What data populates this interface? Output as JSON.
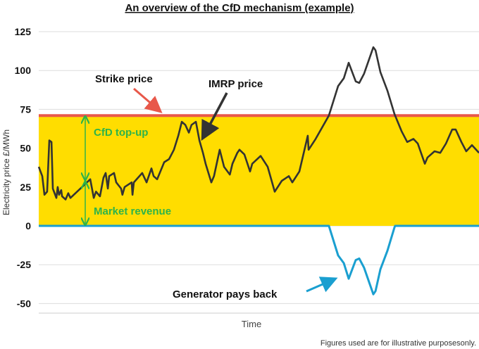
{
  "chart_data": {
    "type": "line",
    "title": "An overview of the CfD mechanism (example)",
    "xlabel": "Time",
    "ylabel": "Electricity price £/MWh",
    "ylim": [
      -50,
      125
    ],
    "yticks": [
      -50,
      -25,
      0,
      25,
      50,
      75,
      100,
      125
    ],
    "xlim": [
      0,
      100
    ],
    "grid": true,
    "strike_price": 71,
    "series": [
      {
        "name": "IMRP price",
        "color": "#333333",
        "x": [
          0,
          0.8,
          1.3,
          1.9,
          2.4,
          2.9,
          3.2,
          4,
          4.3,
          4.6,
          5.1,
          5.3,
          6.1,
          6.7,
          7.2,
          11.7,
          12.5,
          13,
          13.9,
          14.7,
          15.2,
          15.7,
          16,
          17.1,
          17.6,
          18.7,
          19,
          19.5,
          21.1,
          21.3,
          21.6,
          23.5,
          24.5,
          25.6,
          26.1,
          26.9,
          28.5,
          29.6,
          30.7,
          31.7,
          32.5,
          33.3,
          34.1,
          34.7,
          35.7,
          36.5,
          37.3,
          37.9,
          39.2,
          39.8,
          41.1,
          42.1,
          43.4,
          44,
          45.1,
          45.6,
          46.7,
          48,
          48.5,
          50.4,
          52,
          53.6,
          55.2,
          56.8,
          57.6,
          59.2,
          61.1,
          61.3,
          62.9,
          65.9,
          68,
          69.3,
          70.4,
          72,
          72.8,
          73.9,
          76,
          76.5,
          77.6,
          79.2,
          80.8,
          82.4,
          83.7,
          85.1,
          86.1,
          87.7,
          88.3,
          89.9,
          91.2,
          92.5,
          93.9,
          94.7,
          96,
          97.1,
          98.4,
          100
        ],
        "y": [
          38,
          32,
          20,
          22,
          55,
          54,
          24,
          18,
          25,
          20,
          23,
          19,
          17,
          21,
          18,
          30,
          18,
          22,
          19,
          31,
          34,
          24,
          32,
          34,
          28,
          24,
          20,
          25,
          28,
          20,
          28,
          34,
          28,
          37,
          32,
          30,
          41,
          43,
          49,
          58,
          67,
          65,
          60,
          65,
          67,
          55,
          47,
          40,
          28,
          32,
          49,
          38,
          33,
          40,
          47,
          49,
          46,
          35,
          40,
          45,
          38,
          22,
          29,
          32,
          28,
          35,
          58,
          49,
          56,
          71,
          90,
          95,
          105,
          93,
          92,
          98,
          115,
          113,
          99,
          87,
          72,
          61,
          54,
          56,
          53,
          40,
          44,
          48,
          47,
          53,
          62,
          62,
          54,
          48,
          52,
          47
        ]
      },
      {
        "name": "Strike price",
        "color": "#E8584A"
      },
      {
        "name": "Generator pays back",
        "color": "#1A9FD0"
      }
    ],
    "fill_color": "#FFDD00",
    "annotations": {
      "strike": "Strike price",
      "imrp": "IMRP price",
      "topup": "CfD top-up",
      "market": "Market revenue",
      "payback": "Generator pays back",
      "topup_color": "#2DB34A"
    },
    "footnote": "Figures used are for illustrative purposesonly."
  }
}
